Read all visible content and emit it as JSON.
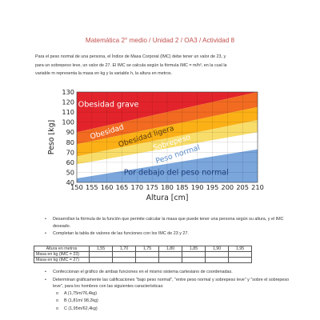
{
  "header": {
    "title": "Matemática 2° medio / Unidad 2 / OA3 / Actividad 8"
  },
  "intro": {
    "line1": "Para el peso normal de una persona, el Índice de Masa Corporal (IMC) debe tener un valor de 23, y",
    "line2": "para un sobrepeso leve, un valor de 27. El IMC se calcula según la fórmula IMC = m/h², en la cual la",
    "line3": "variable m representa la masa en kg y la variable h, la altura en metros."
  },
  "chart_data": {
    "type": "area",
    "title": "",
    "xlabel": "Altura [cm]",
    "ylabel": "Peso [kg]",
    "xlim": [
      150,
      210
    ],
    "ylim": [
      40,
      130
    ],
    "xticks": [
      150,
      155,
      160,
      165,
      170,
      175,
      180,
      185,
      190,
      195,
      200,
      205,
      210
    ],
    "yticks": [
      40,
      50,
      60,
      70,
      80,
      90,
      100,
      110,
      120,
      130
    ],
    "grid": true,
    "bands": [
      {
        "name": "Obesidad grave",
        "color": "#e3232b",
        "text_color": "#ffffff",
        "lower_at_150": 90,
        "lower_at_210": 130
      },
      {
        "name": "Obesidad",
        "color": "#f26b21",
        "text_color": "#ffffff",
        "lower_at_150": 78,
        "lower_at_210": 115
      },
      {
        "name": "Obesidad ligera",
        "color": "#fbb016",
        "text_color": "#5a3a10",
        "lower_at_150": 66,
        "lower_at_210": 102
      },
      {
        "name": "Sobrepeso",
        "color": "#f9dd6a",
        "text_color": "#ffffff",
        "lower_at_150": 58,
        "lower_at_210": 90
      },
      {
        "name": "Peso normal",
        "color": "#ffffff",
        "text_color": "#5e8fcb",
        "lower_at_150": 44,
        "lower_at_210": 73
      },
      {
        "name": "Por debajo del peso normal",
        "color": "#7aa6dc",
        "text_color": "#1f3c78",
        "lower_at_150": 40,
        "lower_at_210": 40
      }
    ]
  },
  "tasks": {
    "item1": "Desarrollan la fórmula de la función que permite calcular la masa que puede tener una persona según su altura, y el IMC deseado.",
    "item2": "Completan la tabla de valores de las funciones con los IMC de 23 y 27."
  },
  "table": {
    "header_label": "Altura en metros",
    "heights": [
      "1,55",
      "1,70",
      "1,75",
      "1,80",
      "1,85",
      "1,90",
      "1,95"
    ],
    "row1_label": "Masa en kg (IMC = 23)",
    "row2_label": "Masa en kg (IMC = 27)"
  },
  "tasks2": {
    "item1": "Confeccionan el gráfico de ambas funciones en el mismo sistema cartesiano de coordenadas.",
    "item2": "Determinan gráficamente las calificaciones \"bajo peso normal\", \"entre peso normal y sobrepeso leve\" y \"sobre el sobrepeso leve\", para los hombres con las siguientes características:",
    "sub": [
      "A (1,75m/76,4kg)",
      "B (1,81m/ 98,2kg)",
      "C (1,95m/62,4kg)"
    ]
  }
}
